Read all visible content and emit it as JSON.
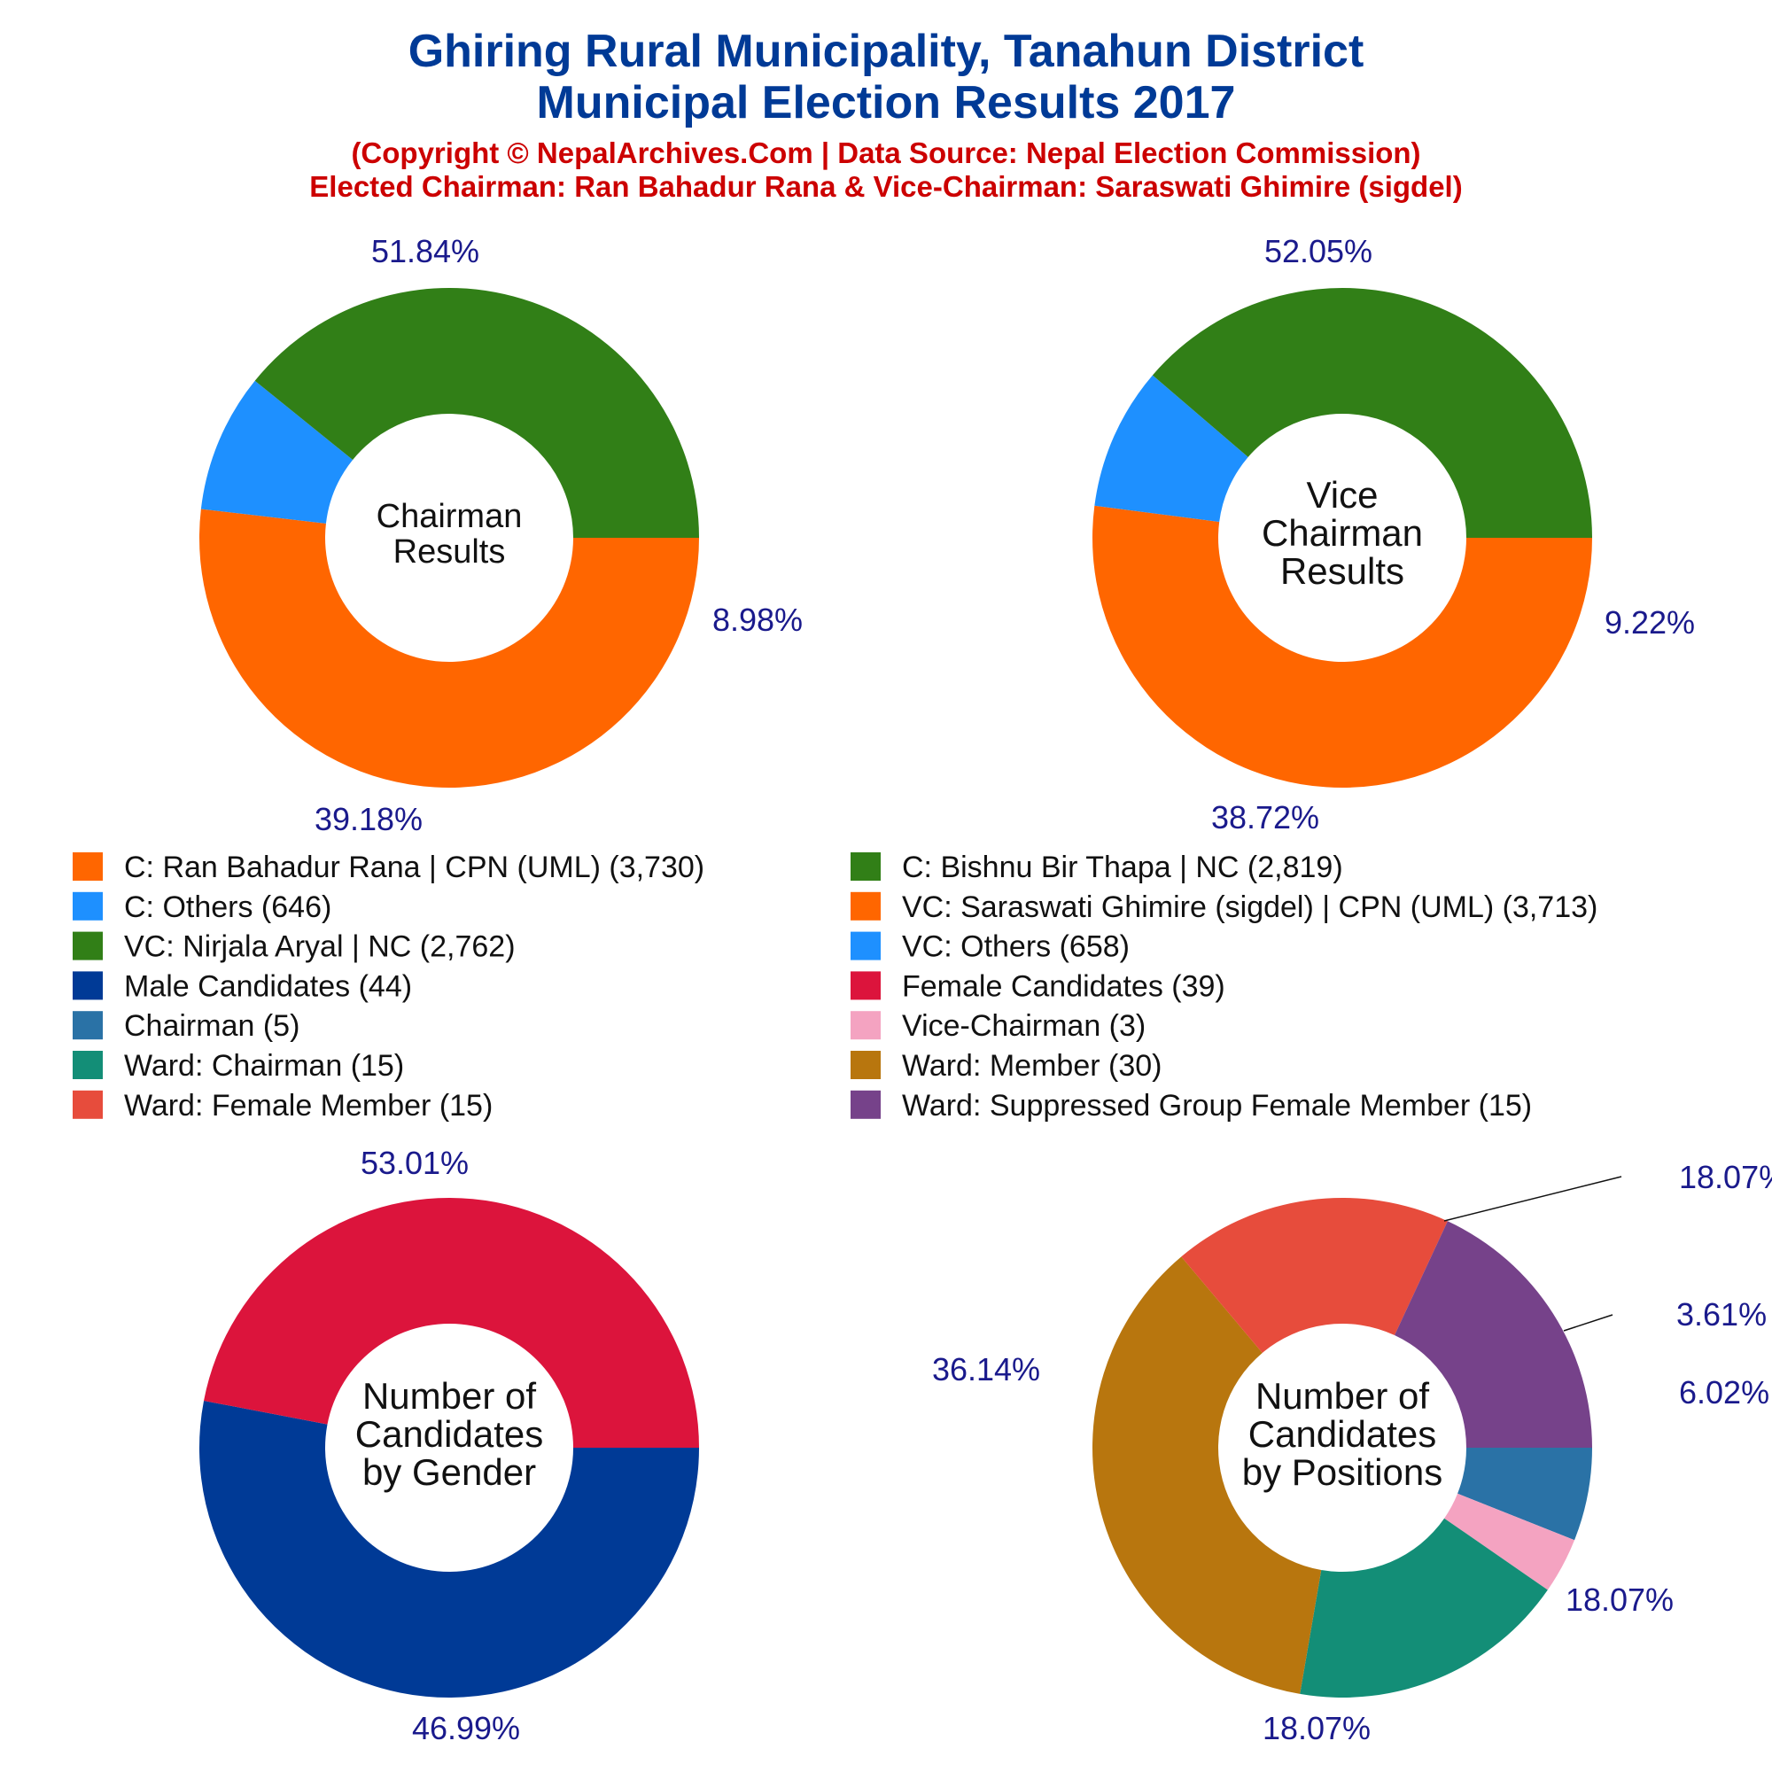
{
  "header": {
    "title_line1": "Ghiring Rural Municipality, Tanahun District",
    "title_line2": "Municipal Election Results 2017",
    "subtitle_line1": "(Copyright © NepalArchives.Com | Data Source: Nepal Election Commission)",
    "subtitle_line2": "Elected Chairman: Ran Bahadur Rana & Vice-Chairman: Saraswati Ghimire (sigdel)"
  },
  "colors": {
    "title": "#003a96",
    "subtitle": "#cc0000",
    "pct_label": "#1a1a8c",
    "center_text": "#111111",
    "legend_text": "#111111"
  },
  "chart_data": [
    {
      "type": "pie",
      "style": "donut",
      "center_label": [
        "Chairman",
        "Results"
      ],
      "slices": [
        {
          "label": "C: Ran Bahadur Rana | CPN (UML) (3,730)",
          "value": 3730,
          "percent_label": "51.84%",
          "color": "#ff6600"
        },
        {
          "label": "C: Others (646)",
          "value": 646,
          "percent_label": "8.98%",
          "color": "#1e90ff"
        },
        {
          "label": "C: Bishnu Bir Thapa | NC (2,819)",
          "value": 2819,
          "percent_label": "39.18%",
          "color": "#317f17"
        }
      ]
    },
    {
      "type": "pie",
      "style": "donut",
      "center_label": [
        "Vice",
        "Chairman",
        "Results"
      ],
      "slices": [
        {
          "label": "VC: Saraswati Ghimire (sigdel) | CPN (UML) (3,713)",
          "value": 3713,
          "percent_label": "52.05%",
          "color": "#ff6600"
        },
        {
          "label": "VC: Others (658)",
          "value": 658,
          "percent_label": "9.22%",
          "color": "#1e90ff"
        },
        {
          "label": "VC: Nirjala Aryal | NC (2,762)",
          "value": 2762,
          "percent_label": "38.72%",
          "color": "#317f17"
        }
      ]
    },
    {
      "type": "pie",
      "style": "donut",
      "center_label": [
        "Number of",
        "Candidates",
        "by Gender"
      ],
      "slices": [
        {
          "label": "Male Candidates (44)",
          "value": 44,
          "percent_label": "53.01%",
          "color": "#003a96"
        },
        {
          "label": "Female Candidates (39)",
          "value": 39,
          "percent_label": "46.99%",
          "color": "#dc143c"
        }
      ]
    },
    {
      "type": "pie",
      "style": "donut",
      "center_label": [
        "Number of",
        "Candidates",
        "by Positions"
      ],
      "slices": [
        {
          "label": "Chairman (5)",
          "value": 5,
          "percent_label": "6.02%",
          "color": "#2a72a6"
        },
        {
          "label": "Vice-Chairman (3)",
          "value": 3,
          "percent_label": "3.61%",
          "color": "#f4a3c1"
        },
        {
          "label": "Ward: Chairman (15)",
          "value": 15,
          "percent_label": "18.07%",
          "color": "#138e77"
        },
        {
          "label": "Ward: Member (30)",
          "value": 30,
          "percent_label": "36.14%",
          "color": "#b8760e"
        },
        {
          "label": "Ward: Female Member (15)",
          "value": 15,
          "percent_label": "18.07%",
          "color": "#e74c3c"
        },
        {
          "label": "Ward: Suppressed Group Female Member (15)",
          "value": 15,
          "percent_label": "18.07%",
          "color": "#76428a"
        }
      ]
    }
  ],
  "legend": {
    "left": [
      {
        "text": "C: Ran Bahadur Rana | CPN (UML) (3,730)",
        "color": "#ff6600"
      },
      {
        "text": "C: Others (646)",
        "color": "#1e90ff"
      },
      {
        "text": "VC: Nirjala Aryal | NC (2,762)",
        "color": "#317f17"
      },
      {
        "text": "Male Candidates (44)",
        "color": "#003a96"
      },
      {
        "text": "Chairman (5)",
        "color": "#2a72a6"
      },
      {
        "text": "Ward: Chairman (15)",
        "color": "#138e77"
      },
      {
        "text": "Ward: Female Member (15)",
        "color": "#e74c3c"
      }
    ],
    "right": [
      {
        "text": "C: Bishnu Bir Thapa | NC (2,819)",
        "color": "#317f17"
      },
      {
        "text": "VC: Saraswati Ghimire (sigdel) | CPN (UML) (3,713)",
        "color": "#ff6600"
      },
      {
        "text": "VC: Others (658)",
        "color": "#1e90ff"
      },
      {
        "text": "Female Candidates (39)",
        "color": "#dc143c"
      },
      {
        "text": "Vice-Chairman (3)",
        "color": "#f4a3c1"
      },
      {
        "text": "Ward: Member (30)",
        "color": "#b8760e"
      },
      {
        "text": "Ward: Suppressed Group Female Member (15)",
        "color": "#76428a"
      }
    ]
  }
}
